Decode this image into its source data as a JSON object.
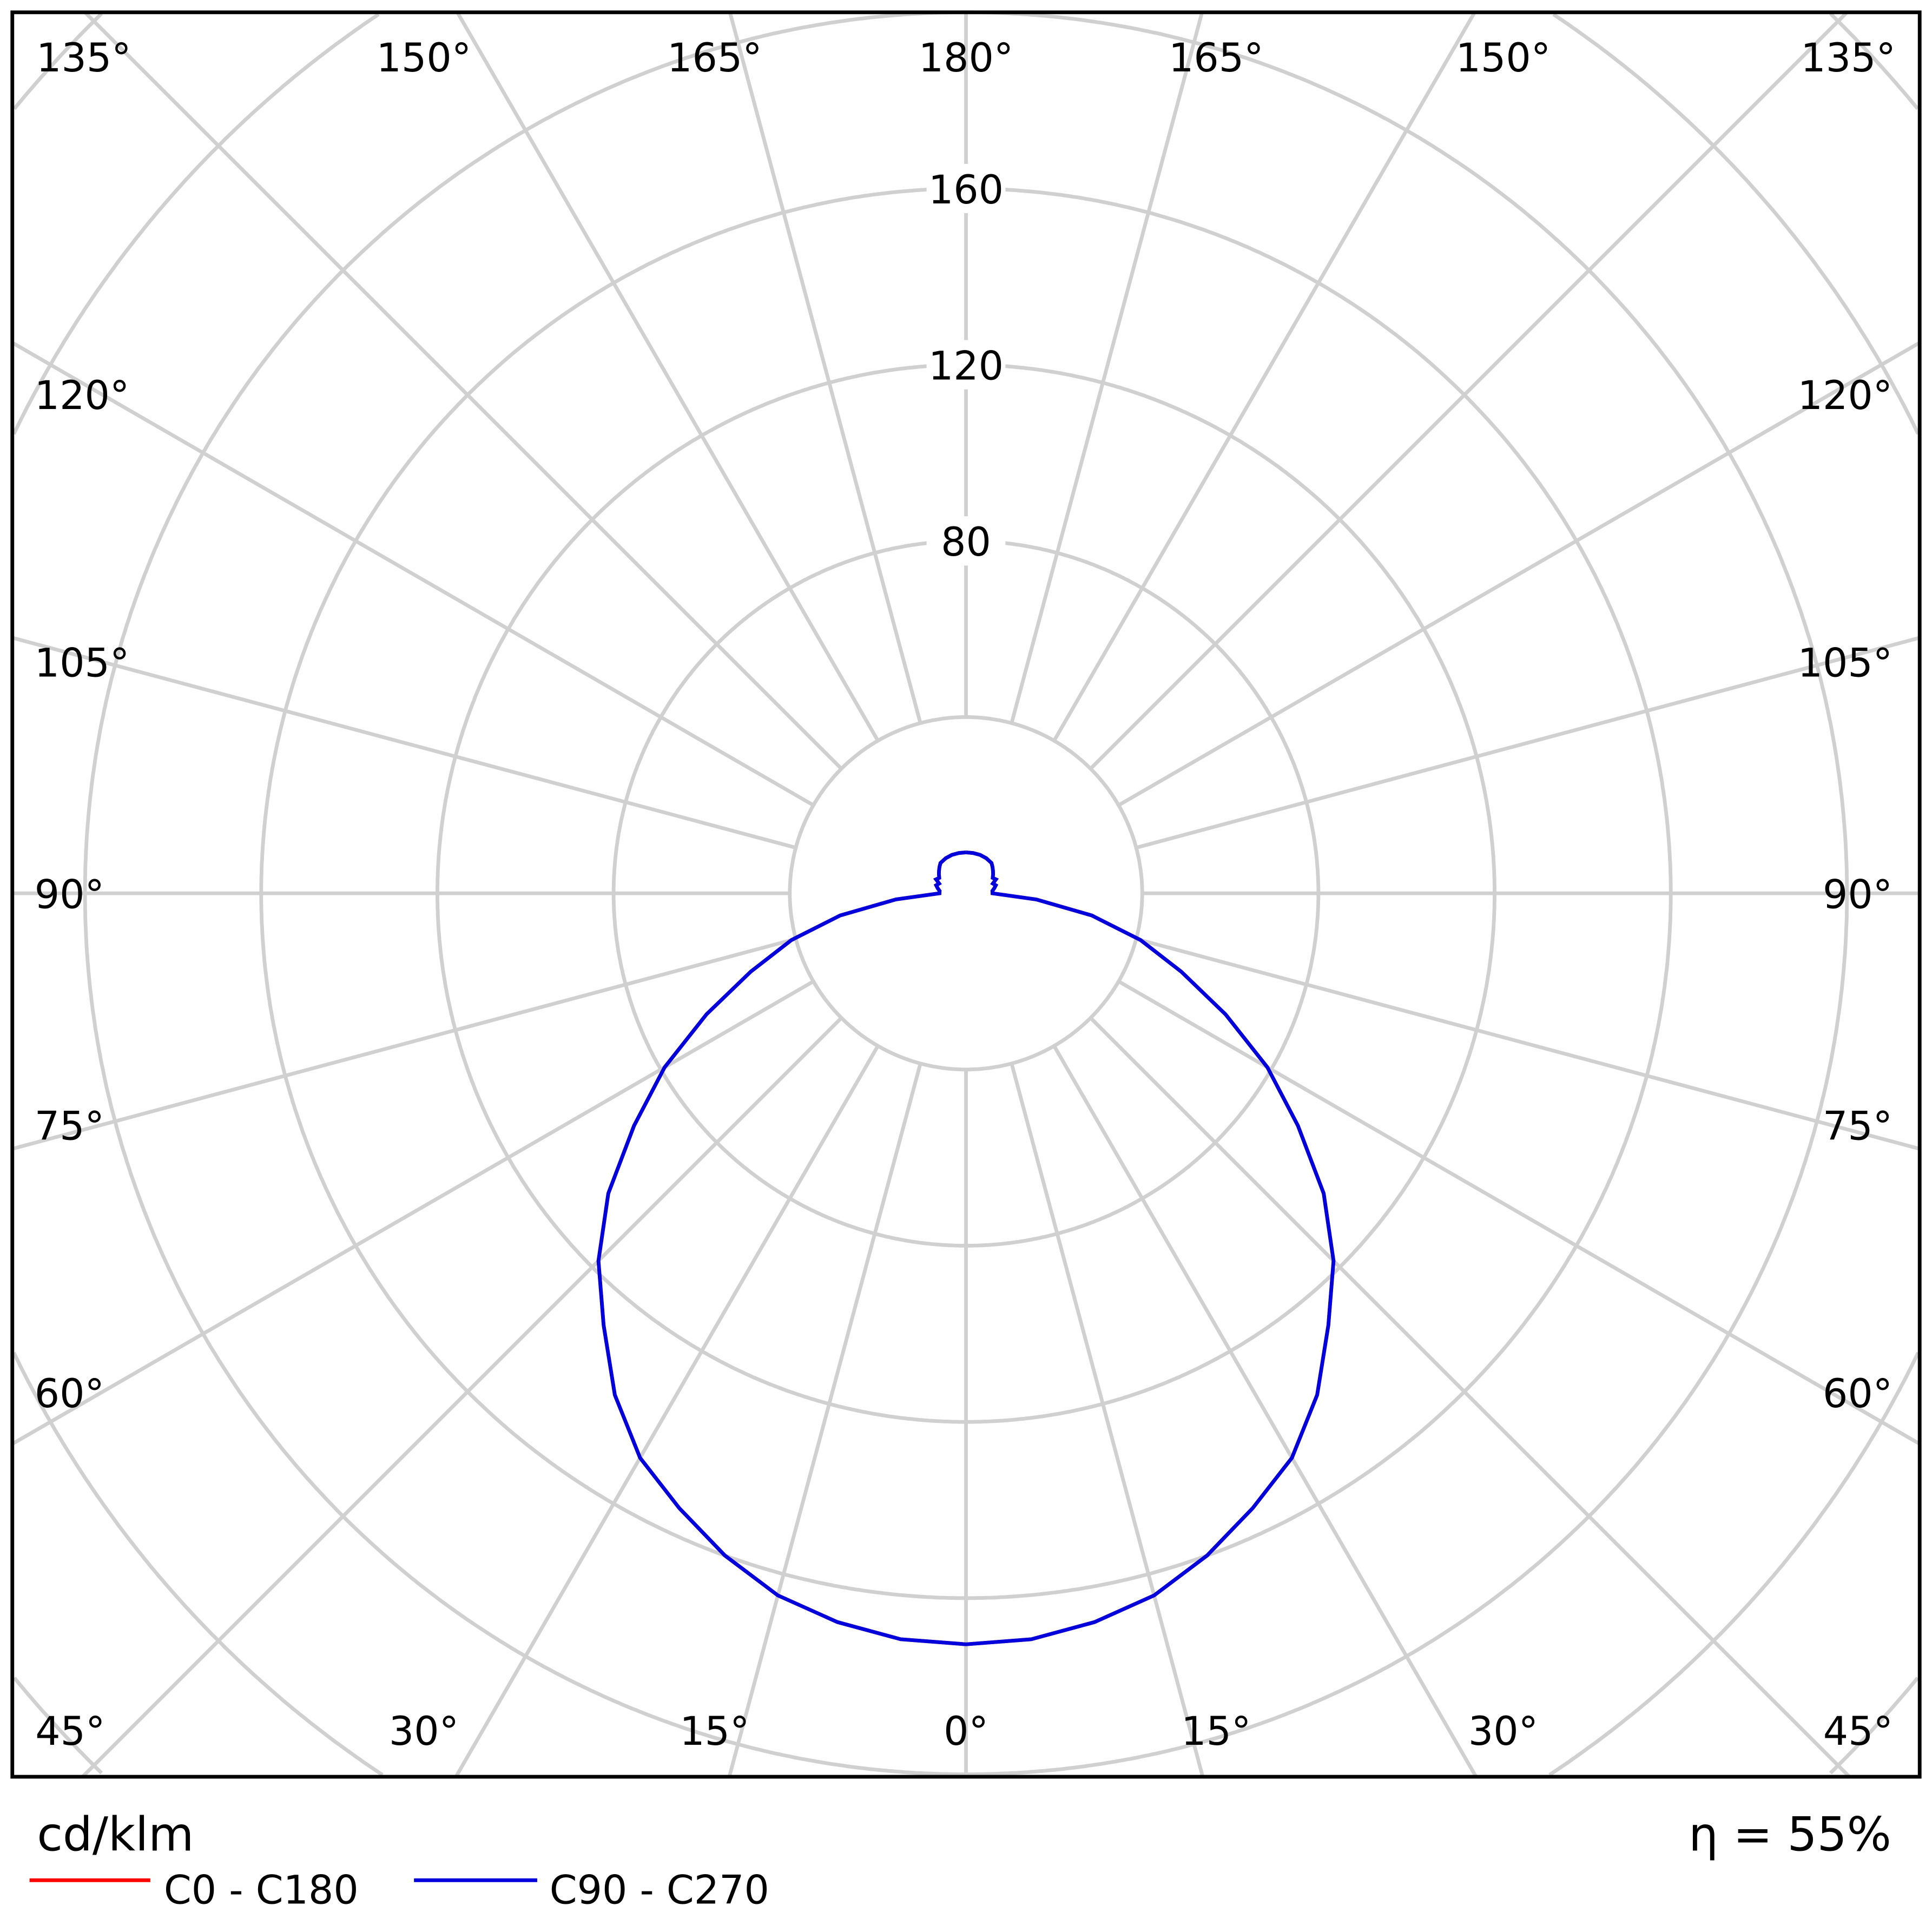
{
  "chart_data": {
    "type": "polar-line",
    "unit_label": "cd/klm",
    "efficiency_label": "η = 55%",
    "radial_ticks": [
      80,
      120,
      160
    ],
    "radial_grid_step": 40,
    "angle_labels": {
      "top": [
        "135°",
        "150°",
        "165°",
        "180°",
        "165°",
        "150°",
        "135°"
      ],
      "left": [
        "120°",
        "105°",
        "90°",
        "75°",
        "60°"
      ],
      "right": [
        "120°",
        "105°",
        "90°",
        "75°",
        "60°"
      ],
      "bottom": [
        "45°",
        "30°",
        "15°",
        "0°",
        "15°",
        "30°",
        "45°"
      ]
    },
    "grid": true,
    "legend_position": "bottom-left",
    "gamma_deg": [
      0,
      5,
      10,
      15,
      20,
      25,
      30,
      35,
      40,
      45,
      50,
      55,
      60,
      65,
      70,
      75,
      80,
      85,
      90,
      95,
      100,
      105,
      110,
      115,
      120,
      125,
      130,
      135,
      140,
      150,
      160,
      170,
      180
    ],
    "series": [
      {
        "name": "C0 - C180",
        "color": "#ff0000",
        "values": [
          170.5,
          170,
          168,
          165,
          160,
          154,
          148,
          139,
          128,
          118,
          106,
          92,
          79,
          65,
          52,
          41,
          29,
          16,
          6,
          6,
          6.5,
          7,
          6.5,
          7.5,
          7,
          7.5,
          8,
          8.5,
          9,
          9.2,
          9.3,
          9.3,
          9.3
        ]
      },
      {
        "name": "C90 - C270",
        "color": "#0000dd",
        "values": [
          170.5,
          170,
          168,
          165,
          160,
          154,
          148,
          139,
          128,
          118,
          106,
          92,
          79,
          65,
          52,
          41,
          29,
          16,
          6,
          6,
          6.5,
          7,
          6.5,
          7.5,
          7,
          7.5,
          8,
          8.5,
          9,
          9.2,
          9.3,
          9.3,
          9.3
        ]
      }
    ]
  }
}
